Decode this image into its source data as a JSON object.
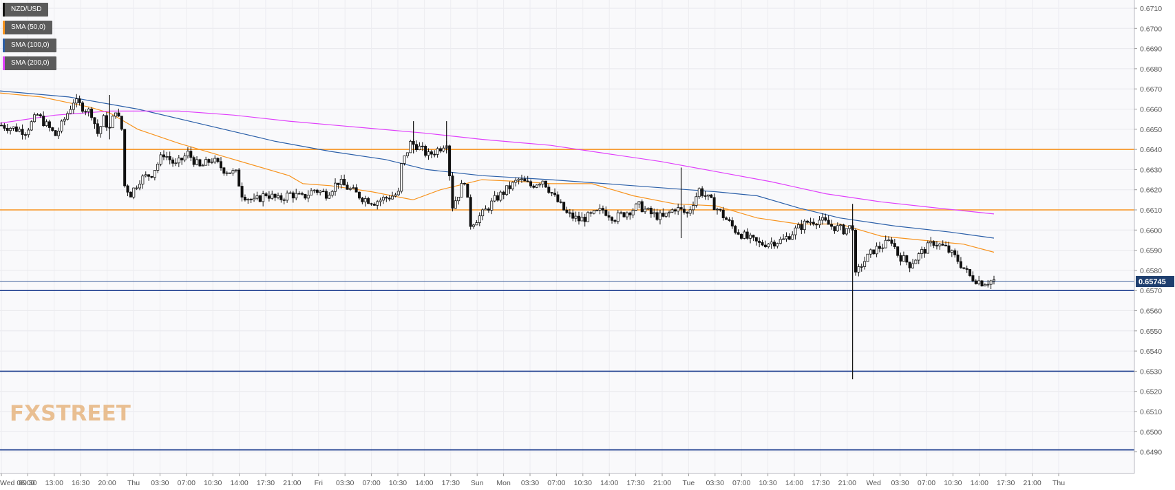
{
  "chart_data": {
    "type": "candlestick",
    "symbol": "NZD/USD",
    "y_range": [
      0.648,
      0.6715
    ],
    "y_ticks": [
      "0.6710",
      "0.6700",
      "0.6690",
      "0.6680",
      "0.6670",
      "0.6660",
      "0.6650",
      "0.6640",
      "0.6630",
      "0.6620",
      "0.6610",
      "0.6600",
      "0.6590",
      "0.6580",
      "0.6570",
      "0.6560",
      "0.6550",
      "0.6540",
      "0.6530",
      "0.6520",
      "0.6510",
      "0.6500",
      "0.6490"
    ],
    "x_ticks": [
      "Wed 06:00",
      "09:30",
      "13:00",
      "16:30",
      "20:00",
      "Thu",
      "03:30",
      "07:00",
      "10:30",
      "14:00",
      "17:30",
      "21:00",
      "Fri",
      "03:30",
      "07:00",
      "10:30",
      "14:00",
      "17:30",
      "Sun",
      "Mon",
      "03:30",
      "07:00",
      "10:30",
      "14:00",
      "17:30",
      "21:00",
      "Tue",
      "03:30",
      "07:00",
      "10:30",
      "14:00",
      "17:30",
      "21:00",
      "Wed",
      "03:30",
      "07:00",
      "10:30",
      "14:00",
      "17:30",
      "21:00",
      "Thu"
    ],
    "current_price": "0.65745",
    "legend": [
      {
        "name": "NZD/USD",
        "color": "#000000"
      },
      {
        "name": "SMA (50,0)",
        "color": "#f7931e"
      },
      {
        "name": "SMA (100,0)",
        "color": "#2b5fa8"
      },
      {
        "name": "SMA (200,0)",
        "color": "#e040fb"
      }
    ],
    "horizontal_levels": [
      {
        "price": 0.664,
        "color": "#f7931e"
      },
      {
        "price": 0.661,
        "color": "#f7931e"
      },
      {
        "price": 0.657,
        "color": "#1f3f8f"
      },
      {
        "price": 0.653,
        "color": "#1f3f8f"
      },
      {
        "price": 0.6491,
        "color": "#1f3f8f"
      }
    ],
    "price_path": [
      [
        0,
        0.6652
      ],
      [
        8,
        0.6649
      ],
      [
        12,
        0.6657
      ],
      [
        18,
        0.6647
      ],
      [
        20,
        0.6652
      ],
      [
        24,
        0.6664
      ],
      [
        30,
        0.6658
      ],
      [
        32,
        0.6648
      ],
      [
        34,
        0.6655
      ],
      [
        36,
        0.665
      ],
      [
        38,
        0.666
      ],
      [
        40,
        0.665
      ],
      [
        41,
        0.6622
      ],
      [
        43,
        0.6618
      ],
      [
        46,
        0.6625
      ],
      [
        50,
        0.6628
      ],
      [
        54,
        0.6638
      ],
      [
        58,
        0.6632
      ],
      [
        62,
        0.6638
      ],
      [
        66,
        0.6631
      ],
      [
        70,
        0.6635
      ],
      [
        74,
        0.663
      ],
      [
        78,
        0.6628
      ],
      [
        80,
        0.6618
      ],
      [
        84,
        0.6614
      ],
      [
        88,
        0.6618
      ],
      [
        92,
        0.6615
      ],
      [
        96,
        0.6618
      ],
      [
        100,
        0.6616
      ],
      [
        104,
        0.662
      ],
      [
        108,
        0.6618
      ],
      [
        112,
        0.6624
      ],
      [
        116,
        0.662
      ],
      [
        120,
        0.6616
      ],
      [
        124,
        0.6614
      ],
      [
        128,
        0.6616
      ],
      [
        132,
        0.6618
      ],
      [
        133,
        0.6632
      ],
      [
        136,
        0.6643
      ],
      [
        138,
        0.6642
      ],
      [
        142,
        0.6637
      ],
      [
        146,
        0.6641
      ],
      [
        148,
        0.6644
      ],
      [
        150,
        0.6612
      ],
      [
        152,
        0.6618
      ],
      [
        154,
        0.6625
      ],
      [
        156,
        0.6603
      ],
      [
        160,
        0.6608
      ],
      [
        164,
        0.6615
      ],
      [
        168,
        0.662
      ],
      [
        172,
        0.6625
      ],
      [
        176,
        0.6622
      ],
      [
        180,
        0.6625
      ],
      [
        184,
        0.6616
      ],
      [
        188,
        0.6608
      ],
      [
        192,
        0.6605
      ],
      [
        196,
        0.6607
      ],
      [
        200,
        0.661
      ],
      [
        204,
        0.6606
      ],
      [
        208,
        0.6609
      ],
      [
        212,
        0.6612
      ],
      [
        216,
        0.6608
      ],
      [
        220,
        0.6606
      ],
      [
        224,
        0.6611
      ],
      [
        228,
        0.6608
      ],
      [
        232,
        0.662
      ],
      [
        236,
        0.6614
      ],
      [
        240,
        0.6607
      ],
      [
        244,
        0.66
      ],
      [
        248,
        0.6596
      ],
      [
        252,
        0.6593
      ],
      [
        256,
        0.6594
      ],
      [
        260,
        0.6595
      ],
      [
        264,
        0.66
      ],
      [
        268,
        0.6604
      ],
      [
        272,
        0.6605
      ],
      [
        276,
        0.6602
      ],
      [
        280,
        0.66
      ],
      [
        283,
        0.6602
      ],
      [
        284,
        0.6577
      ],
      [
        286,
        0.6583
      ],
      [
        290,
        0.659
      ],
      [
        294,
        0.6593
      ],
      [
        296,
        0.6595
      ],
      [
        298,
        0.6588
      ],
      [
        302,
        0.6583
      ],
      [
        306,
        0.6589
      ],
      [
        310,
        0.6594
      ],
      [
        314,
        0.6591
      ],
      [
        318,
        0.6585
      ],
      [
        322,
        0.6577
      ],
      [
        326,
        0.6574
      ],
      [
        330,
        0.6575
      ]
    ]
  },
  "watermark": "FXSTREET"
}
